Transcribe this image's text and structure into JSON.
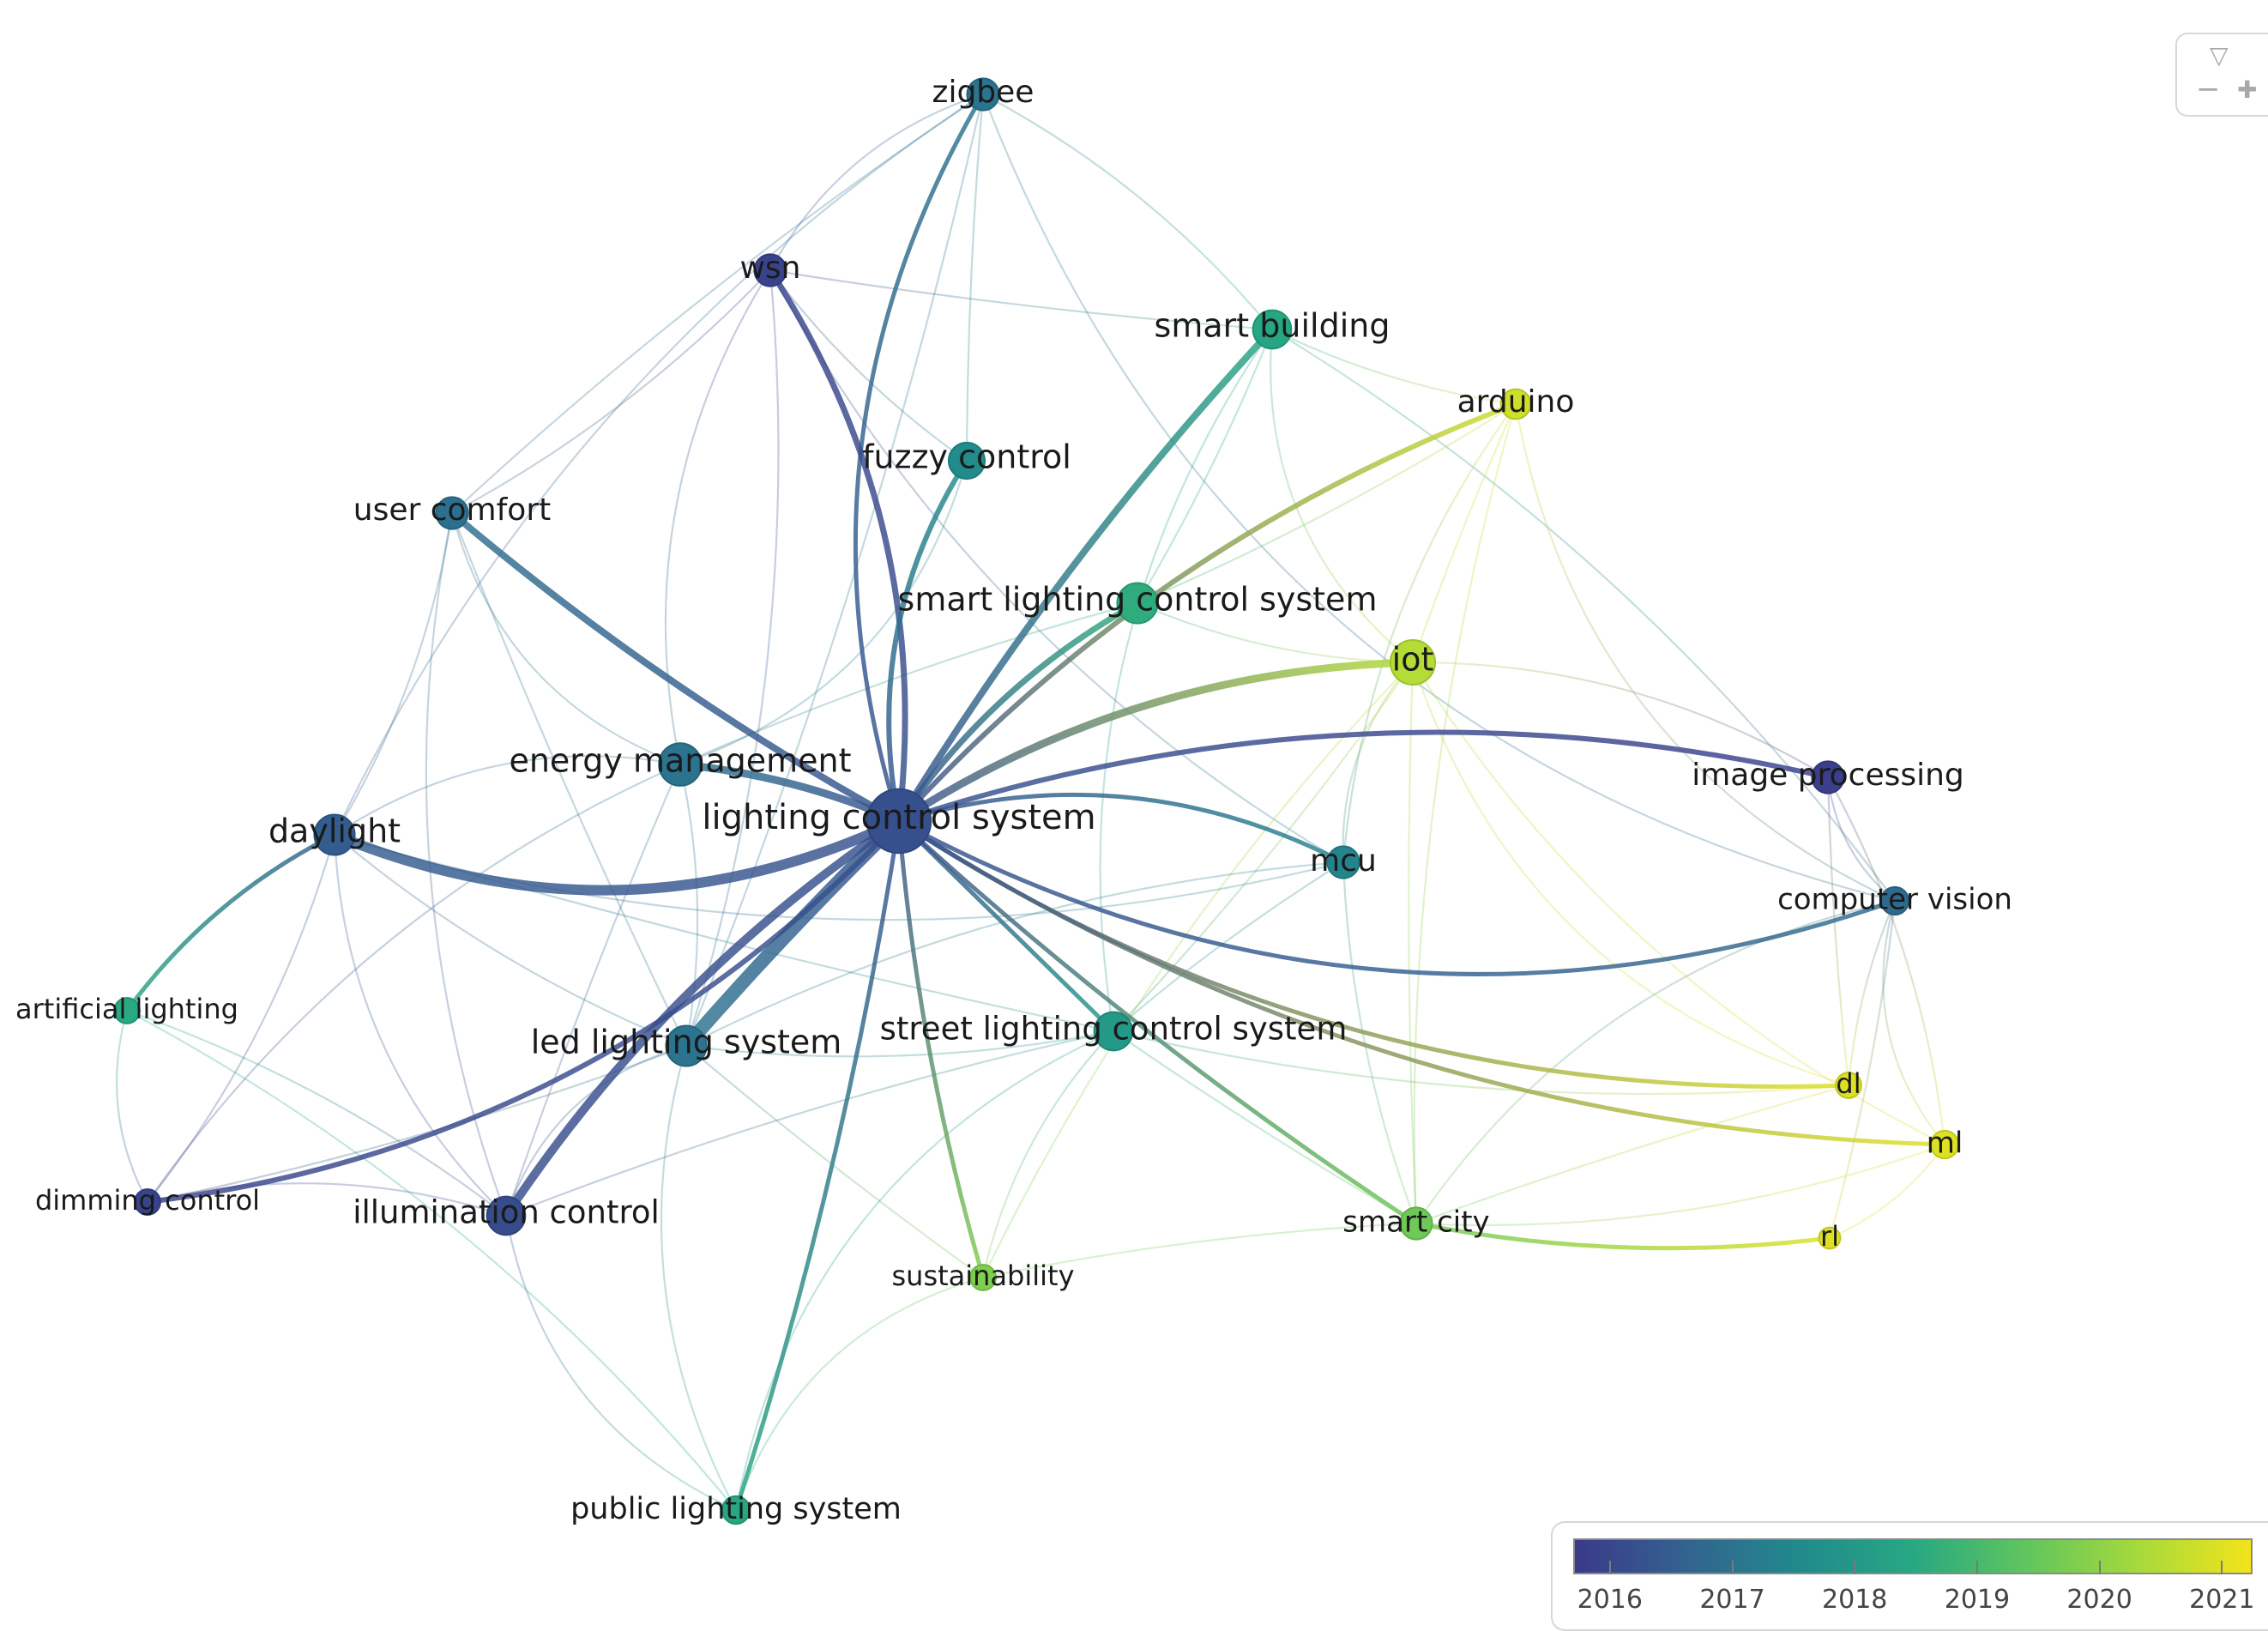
{
  "nodes": [
    {
      "id": "lcs",
      "label": "lighting control system",
      "year": 2016.2,
      "weight": 6.0
    },
    {
      "id": "em",
      "label": "energy management",
      "year": 2017.0,
      "weight": 4.0
    },
    {
      "id": "dl_",
      "label": "daylight",
      "year": 2016.5,
      "weight": 3.8
    },
    {
      "id": "led",
      "label": "led lighting system",
      "year": 2017.0,
      "weight": 3.8
    },
    {
      "id": "ic",
      "label": "illumination control",
      "year": 2016.1,
      "weight": 3.6
    },
    {
      "id": "uc",
      "label": "user comfort",
      "year": 2016.9,
      "weight": 3.0
    },
    {
      "id": "zig",
      "label": "zigbee",
      "year": 2017.0,
      "weight": 3.0
    },
    {
      "id": "wsn",
      "label": "wsn",
      "year": 2015.9,
      "weight": 3.0
    },
    {
      "id": "sb",
      "label": "smart building",
      "year": 2018.4,
      "weight": 3.6
    },
    {
      "id": "ard",
      "label": "arduino",
      "year": 2020.8,
      "weight": 2.8
    },
    {
      "id": "fc",
      "label": "fuzzy control",
      "year": 2017.6,
      "weight": 3.4
    },
    {
      "id": "slcs",
      "label": "smart lighting control system",
      "year": 2018.6,
      "weight": 3.8
    },
    {
      "id": "iot",
      "label": "iot",
      "year": 2020.5,
      "weight": 4.2
    },
    {
      "id": "ip",
      "label": "image processing",
      "year": 2015.8,
      "weight": 3.0
    },
    {
      "id": "cv",
      "label": "computer vision",
      "year": 2016.8,
      "weight": 2.6
    },
    {
      "id": "mcu",
      "label": "mcu",
      "year": 2017.4,
      "weight": 3.0
    },
    {
      "id": "al",
      "label": "artificial lighting",
      "year": 2018.5,
      "weight": 2.4
    },
    {
      "id": "dc",
      "label": "dimming control",
      "year": 2015.9,
      "weight": 2.4
    },
    {
      "id": "stl",
      "label": "street lighting control system",
      "year": 2018.0,
      "weight": 3.6
    },
    {
      "id": "dl",
      "label": "dl",
      "year": 2021.0,
      "weight": 2.4
    },
    {
      "id": "ml",
      "label": "ml",
      "year": 2021.0,
      "weight": 2.6
    },
    {
      "id": "rl",
      "label": "rl",
      "year": 2021.0,
      "weight": 2.0
    },
    {
      "id": "sc",
      "label": "smart city",
      "year": 2019.6,
      "weight": 3.0
    },
    {
      "id": "sus",
      "label": "sustainability",
      "year": 2019.8,
      "weight": 2.4
    },
    {
      "id": "pls",
      "label": "public lighting system",
      "year": 2018.4,
      "weight": 2.6
    }
  ],
  "strong_links": [
    [
      "lcs",
      "zig"
    ],
    [
      "lcs",
      "wsn"
    ],
    [
      "lcs",
      "sb"
    ],
    [
      "lcs",
      "ard"
    ],
    [
      "lcs",
      "fc"
    ],
    [
      "lcs",
      "slcs"
    ],
    [
      "lcs",
      "iot"
    ],
    [
      "lcs",
      "uc"
    ],
    [
      "lcs",
      "em"
    ],
    [
      "lcs",
      "dl_"
    ],
    [
      "lcs",
      "led"
    ],
    [
      "lcs",
      "ic"
    ],
    [
      "lcs",
      "dc"
    ],
    [
      "lcs",
      "ip"
    ],
    [
      "lcs",
      "cv"
    ],
    [
      "lcs",
      "mcu"
    ],
    [
      "lcs",
      "stl"
    ],
    [
      "lcs",
      "dl"
    ],
    [
      "lcs",
      "ml"
    ],
    [
      "lcs",
      "sc"
    ],
    [
      "lcs",
      "sus"
    ],
    [
      "lcs",
      "pls"
    ],
    [
      "dl_",
      "al"
    ],
    [
      "sc",
      "rl"
    ]
  ],
  "weak_links": [
    [
      "uc",
      "dl_"
    ],
    [
      "uc",
      "led"
    ],
    [
      "uc",
      "ic"
    ],
    [
      "uc",
      "em"
    ],
    [
      "uc",
      "zig"
    ],
    [
      "uc",
      "wsn"
    ],
    [
      "zig",
      "wsn"
    ],
    [
      "zig",
      "sb"
    ],
    [
      "zig",
      "fc"
    ],
    [
      "zig",
      "dl_"
    ],
    [
      "zig",
      "cv"
    ],
    [
      "zig",
      "led"
    ],
    [
      "wsn",
      "fc"
    ],
    [
      "wsn",
      "em"
    ],
    [
      "wsn",
      "led"
    ],
    [
      "wsn",
      "sb"
    ],
    [
      "wsn",
      "mcu"
    ],
    [
      "sb",
      "iot"
    ],
    [
      "sb",
      "slcs"
    ],
    [
      "sb",
      "ard"
    ],
    [
      "sb",
      "stl"
    ],
    [
      "sb",
      "cv"
    ],
    [
      "ard",
      "iot"
    ],
    [
      "ard",
      "mcu"
    ],
    [
      "ard",
      "cv"
    ],
    [
      "ard",
      "slcs"
    ],
    [
      "ard",
      "sc"
    ],
    [
      "iot",
      "mcu"
    ],
    [
      "iot",
      "slcs"
    ],
    [
      "iot",
      "sc"
    ],
    [
      "iot",
      "ml"
    ],
    [
      "iot",
      "dl"
    ],
    [
      "iot",
      "stl"
    ],
    [
      "iot",
      "sus"
    ],
    [
      "em",
      "dl_"
    ],
    [
      "em",
      "led"
    ],
    [
      "em",
      "ic"
    ],
    [
      "em",
      "dc"
    ],
    [
      "em",
      "fc"
    ],
    [
      "em",
      "slcs"
    ],
    [
      "dl_",
      "led"
    ],
    [
      "dl_",
      "ic"
    ],
    [
      "dl_",
      "dc"
    ],
    [
      "dl_",
      "stl"
    ],
    [
      "dl_",
      "mcu"
    ],
    [
      "led",
      "ic"
    ],
    [
      "led",
      "dc"
    ],
    [
      "led",
      "stl"
    ],
    [
      "led",
      "pls"
    ],
    [
      "led",
      "mcu"
    ],
    [
      "led",
      "sus"
    ],
    [
      "ic",
      "dc"
    ],
    [
      "ic",
      "pls"
    ],
    [
      "ic",
      "stl"
    ],
    [
      "ic",
      "al"
    ],
    [
      "al",
      "dc"
    ],
    [
      "al",
      "pls"
    ],
    [
      "stl",
      "sc"
    ],
    [
      "stl",
      "sus"
    ],
    [
      "stl",
      "pls"
    ],
    [
      "stl",
      "mcu"
    ],
    [
      "stl",
      "dl"
    ],
    [
      "ip",
      "cv"
    ],
    [
      "ip",
      "ml"
    ],
    [
      "ip",
      "dl"
    ],
    [
      "ip",
      "iot"
    ],
    [
      "cv",
      "ml"
    ],
    [
      "cv",
      "rl"
    ],
    [
      "cv",
      "dl"
    ],
    [
      "cv",
      "sc"
    ],
    [
      "ml",
      "sc"
    ],
    [
      "dl",
      "sc"
    ],
    [
      "rl",
      "ml"
    ],
    [
      "sus",
      "pls"
    ],
    [
      "sus",
      "sc"
    ],
    [
      "mcu",
      "sc"
    ]
  ],
  "legend": {
    "ticks": [
      "2016",
      "2017",
      "2018",
      "2019",
      "2020",
      "2021"
    ],
    "tick_years": [
      2016,
      2017,
      2018,
      2019,
      2020,
      2021
    ],
    "min_year": 2015.7,
    "max_year": 2021.25,
    "colors": [
      "#3b3a8a",
      "#32638f",
      "#218a8c",
      "#27a882",
      "#5fc55e",
      "#a6d93c",
      "#f2e41a"
    ]
  },
  "zoom": {
    "up": "▽",
    "minus": "−",
    "plus": "✚"
  }
}
